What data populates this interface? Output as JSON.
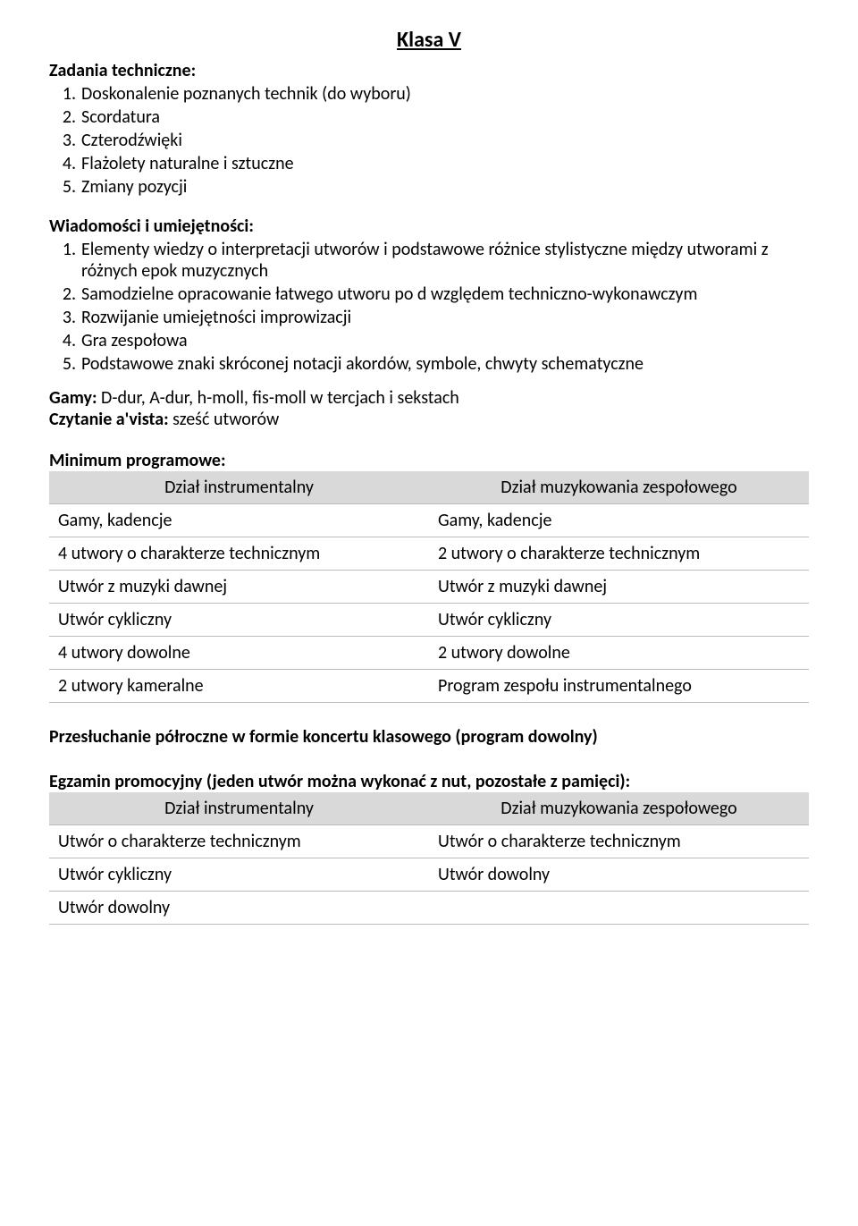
{
  "title": "Klasa V",
  "sections": {
    "zadania": {
      "heading": "Zadania techniczne:",
      "items": [
        "Doskonalenie poznanych technik (do wyboru)",
        "Scordatura",
        "Czterodźwięki",
        "Flażolety naturalne i sztuczne",
        "Zmiany pozycji"
      ]
    },
    "wiadomosci": {
      "heading": "Wiadomości i umiejętności:",
      "items": [
        "Elementy wiedzy o interpretacji utworów  i podstawowe różnice stylistyczne między utworami z różnych epok muzycznych",
        "Samodzielne opracowanie łatwego utworu po d względem techniczno-wykonawczym",
        "Rozwijanie umiejętności improwizacji",
        "Gra zespołowa",
        "Podstawowe znaki skróconej notacji akordów, symbole, chwyty schematyczne"
      ]
    },
    "gamy": {
      "label": "Gamy:",
      "text": " D-dur, A-dur, h-moll, fis-moll w tercjach i sekstach"
    },
    "czytanie": {
      "label": "Czytanie a'vista:",
      "text": " sześć utworów"
    },
    "minimum": {
      "heading": "Minimum programowe:",
      "headers": [
        "Dział instrumentalny",
        "Dział muzykowania zespołowego"
      ],
      "rows": [
        [
          "Gamy, kadencje",
          "Gamy, kadencje"
        ],
        [
          "4 utwory o charakterze technicznym",
          "2 utwory o charakterze technicznym"
        ],
        [
          "Utwór z muzyki dawnej",
          "Utwór z muzyki dawnej"
        ],
        [
          "Utwór cykliczny",
          "Utwór cykliczny"
        ],
        [
          "4 utwory dowolne",
          "2 utwory dowolne"
        ],
        [
          "2 utwory kameralne",
          "Program zespołu instrumentalnego"
        ]
      ]
    },
    "midyear": "Przesłuchanie półroczne w formie koncertu klasowego (program dowolny)",
    "exam": {
      "heading": "Egzamin promocyjny (jeden utwór można wykonać z nut, pozostałe z pamięci):",
      "headers": [
        "Dział instrumentalny",
        "Dział muzykowania zespołowego"
      ],
      "rows": [
        [
          "Utwór o charakterze technicznym",
          "Utwór o charakterze technicznym"
        ],
        [
          "Utwór cykliczny",
          "Utwór dowolny"
        ],
        [
          "Utwór dowolny",
          ""
        ]
      ]
    }
  },
  "colors": {
    "background": "#ffffff",
    "text": "#000000",
    "table_header_bg": "#d9d9d9",
    "table_border": "#bbbbbb"
  },
  "typography": {
    "base_font_size": 20,
    "title_font_size": 24,
    "font_family": "Calibri"
  }
}
